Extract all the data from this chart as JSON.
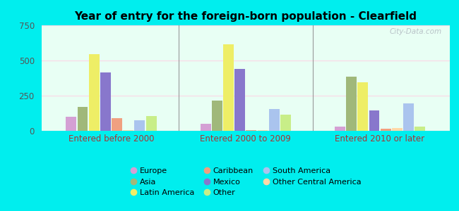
{
  "title": "Year of entry for the foreign-born population - Clearfield",
  "groups": [
    "Entered before 2000",
    "Entered 2000 to 2009",
    "Entered 2010 or later"
  ],
  "series": [
    {
      "name": "Europe",
      "color": "#d4a0d4",
      "values": [
        100,
        50,
        30
      ]
    },
    {
      "name": "Asia",
      "color": "#a0b87a",
      "values": [
        170,
        215,
        385
      ]
    },
    {
      "name": "Latin America",
      "color": "#eeee66",
      "values": [
        545,
        615,
        345
      ]
    },
    {
      "name": "Mexico",
      "color": "#8877cc",
      "values": [
        415,
        440,
        145
      ]
    },
    {
      "name": "Caribbean",
      "color": "#f0a080",
      "values": [
        90,
        5,
        15
      ]
    },
    {
      "name": "Other Central America",
      "color": "#ffd8a8",
      "values": [
        5,
        5,
        20
      ]
    },
    {
      "name": "South America",
      "color": "#aac4ee",
      "values": [
        75,
        155,
        195
      ]
    },
    {
      "name": "Other",
      "color": "#c8ee88",
      "values": [
        105,
        115,
        30
      ]
    }
  ],
  "ylim": [
    0,
    750
  ],
  "yticks": [
    0,
    250,
    500,
    750
  ],
  "outer_bg": "#00eeee",
  "plot_bg": "#e8fff4",
  "grid_color": "#f8dde8",
  "xlabel_color": "#aa3333",
  "title_color": "#000000",
  "watermark": "City-Data.com",
  "legend_order": [
    [
      "Europe",
      "#d4a0d4"
    ],
    [
      "Asia",
      "#a0b87a"
    ],
    [
      "Latin America",
      "#eeee66"
    ],
    [
      "Caribbean",
      "#f0a080"
    ],
    [
      "Mexico",
      "#8877cc"
    ],
    [
      "Other",
      "#c8ee88"
    ],
    [
      "South America",
      "#aac4ee"
    ],
    [
      "Other Central America",
      "#ffd8a8"
    ]
  ]
}
